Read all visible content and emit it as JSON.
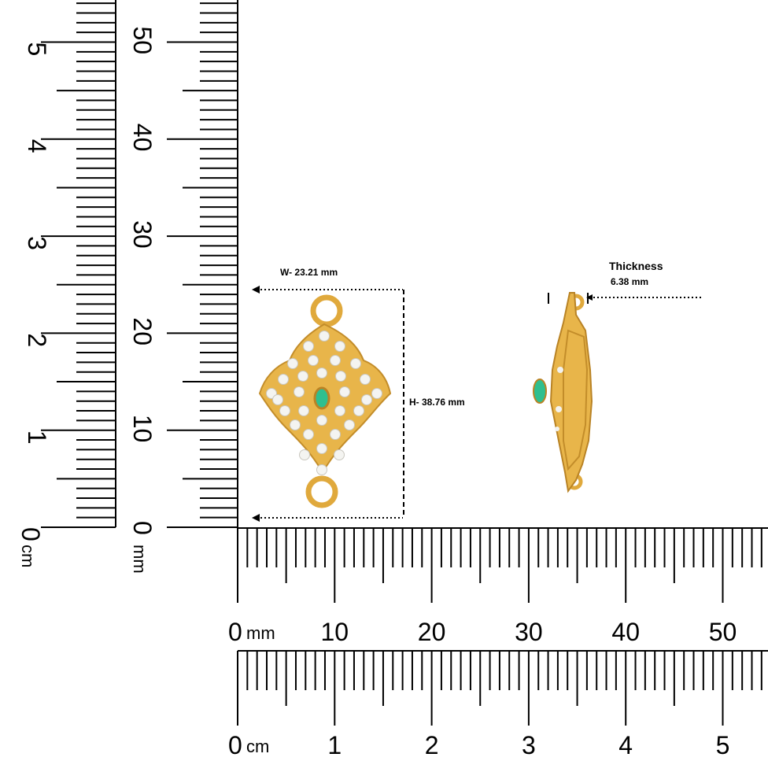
{
  "measurements": {
    "width_label": "W- 23.21 mm",
    "height_label": "H- 38.76 mm",
    "thickness_title": "Thickness",
    "thickness_value": "6.38 mm"
  },
  "rulers": {
    "left_cm": {
      "unit": "cm",
      "zero": "0",
      "labels": [
        "1",
        "2",
        "3",
        "4",
        "5"
      ]
    },
    "left_mm": {
      "unit": "mm",
      "zero": "0",
      "labels": [
        "10",
        "20",
        "30",
        "40",
        "50"
      ]
    },
    "bottom_mm": {
      "unit": "mm",
      "zero": "0",
      "labels": [
        "10",
        "20",
        "30",
        "40",
        "50"
      ]
    },
    "bottom_cm": {
      "unit": "cm",
      "zero": "0",
      "labels": [
        "1",
        "2",
        "3",
        "4",
        "5"
      ]
    }
  },
  "colors": {
    "gold": "#e0a93c",
    "gold_dark": "#b98325",
    "diamond": "#f2f2f0",
    "emerald": "#2fbf8f"
  },
  "icons": [
    "pendant-front-view",
    "pendant-side-view"
  ]
}
